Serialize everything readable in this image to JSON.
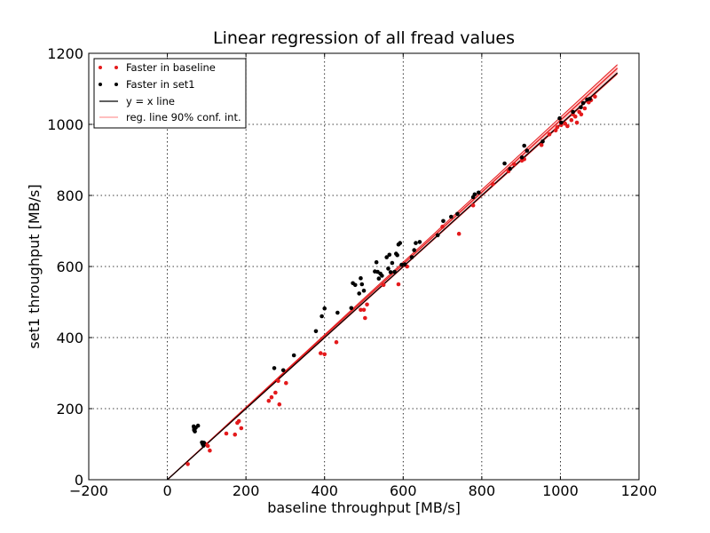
{
  "chart_data": {
    "type": "scatter",
    "title": "Linear regression of all fread values",
    "xlabel": "baseline throughput [MB/s]",
    "ylabel": "set1 throughput [MB/s]",
    "xlim": [
      -200,
      1200
    ],
    "ylim": [
      0,
      1200
    ],
    "xticks": [
      -200,
      0,
      200,
      400,
      600,
      800,
      1000,
      1200
    ],
    "yticks": [
      0,
      200,
      400,
      600,
      800,
      1000,
      1200
    ],
    "xtick_labels": [
      "−200",
      "0",
      "200",
      "400",
      "600",
      "800",
      "1000",
      "1200"
    ],
    "ytick_labels": [
      "0",
      "200",
      "400",
      "600",
      "800",
      "1000",
      "1200"
    ],
    "grid": true,
    "legend_position": "top-left",
    "series": [
      {
        "name": "Faster in baseline",
        "color": "#e41a1c",
        "marker": "dot",
        "points": [
          [
            52,
            44
          ],
          [
            98,
            100
          ],
          [
            103,
            95
          ],
          [
            108,
            82
          ],
          [
            150,
            130
          ],
          [
            172,
            127
          ],
          [
            178,
            160
          ],
          [
            182,
            165
          ],
          [
            188,
            145
          ],
          [
            258,
            222
          ],
          [
            265,
            232
          ],
          [
            275,
            245
          ],
          [
            282,
            278
          ],
          [
            285,
            212
          ],
          [
            302,
            272
          ],
          [
            390,
            356
          ],
          [
            400,
            353
          ],
          [
            430,
            387
          ],
          [
            492,
            478
          ],
          [
            500,
            478
          ],
          [
            503,
            455
          ],
          [
            508,
            493
          ],
          [
            550,
            548
          ],
          [
            588,
            550
          ],
          [
            598,
            605
          ],
          [
            610,
            600
          ],
          [
            700,
            712
          ],
          [
            742,
            692
          ],
          [
            778,
            772
          ],
          [
            828,
            832
          ],
          [
            868,
            868
          ],
          [
            882,
            888
          ],
          [
            902,
            898
          ],
          [
            908,
            902
          ],
          [
            952,
            942
          ],
          [
            972,
            972
          ],
          [
            988,
            983
          ],
          [
            992,
            992
          ],
          [
            1002,
            998
          ],
          [
            1012,
            1002
          ],
          [
            1018,
            995
          ],
          [
            1028,
            1012
          ],
          [
            1032,
            1028
          ],
          [
            1038,
            1022
          ],
          [
            1042,
            1005
          ],
          [
            1048,
            1035
          ],
          [
            1053,
            1028
          ],
          [
            1062,
            1045
          ],
          [
            1072,
            1062
          ],
          [
            1078,
            1068
          ],
          [
            1088,
            1078
          ]
        ]
      },
      {
        "name": "Faster in set1",
        "color": "#000000",
        "marker": "dot",
        "points": [
          [
            67,
            150
          ],
          [
            68,
            146
          ],
          [
            68,
            140
          ],
          [
            70,
            136
          ],
          [
            72,
            146
          ],
          [
            78,
            152
          ],
          [
            88,
            105
          ],
          [
            90,
            100
          ],
          [
            92,
            96
          ],
          [
            93,
            104
          ],
          [
            272,
            314
          ],
          [
            295,
            308
          ],
          [
            322,
            350
          ],
          [
            378,
            418
          ],
          [
            393,
            460
          ],
          [
            400,
            482
          ],
          [
            433,
            470
          ],
          [
            468,
            483
          ],
          [
            472,
            553
          ],
          [
            478,
            548
          ],
          [
            488,
            524
          ],
          [
            492,
            567
          ],
          [
            495,
            550
          ],
          [
            500,
            532
          ],
          [
            528,
            586
          ],
          [
            532,
            612
          ],
          [
            535,
            585
          ],
          [
            538,
            566
          ],
          [
            542,
            580
          ],
          [
            546,
            574
          ],
          [
            558,
            626
          ],
          [
            562,
            594
          ],
          [
            565,
            633
          ],
          [
            568,
            584
          ],
          [
            572,
            610
          ],
          [
            578,
            585
          ],
          [
            582,
            636
          ],
          [
            585,
            632
          ],
          [
            588,
            662
          ],
          [
            592,
            666
          ],
          [
            596,
            605
          ],
          [
            604,
            606
          ],
          [
            622,
            626
          ],
          [
            628,
            646
          ],
          [
            632,
            666
          ],
          [
            642,
            669
          ],
          [
            688,
            688
          ],
          [
            702,
            728
          ],
          [
            722,
            740
          ],
          [
            738,
            748
          ],
          [
            778,
            795
          ],
          [
            782,
            803
          ],
          [
            792,
            808
          ],
          [
            858,
            890
          ],
          [
            872,
            875
          ],
          [
            902,
            907
          ],
          [
            908,
            940
          ],
          [
            915,
            926
          ],
          [
            955,
            952
          ],
          [
            998,
            1017
          ],
          [
            1002,
            1005
          ],
          [
            1032,
            1035
          ],
          [
            1052,
            1048
          ],
          [
            1058,
            1060
          ],
          [
            1068,
            1070
          ],
          [
            1075,
            1072
          ]
        ]
      }
    ],
    "lines": [
      {
        "name": "y = x line",
        "color": "#000000",
        "x": [
          0,
          1145
        ],
        "y": [
          0,
          1145
        ]
      },
      {
        "name": "reg. line 90% conf. int.",
        "color": "#ff9999",
        "band_x": [
          0,
          1145
        ],
        "band_lower": [
          0,
          1142
        ],
        "band_upper": [
          0,
          1168
        ],
        "fit_color": "#e41a1c",
        "fit_y": [
          0,
          1158
        ]
      }
    ]
  }
}
